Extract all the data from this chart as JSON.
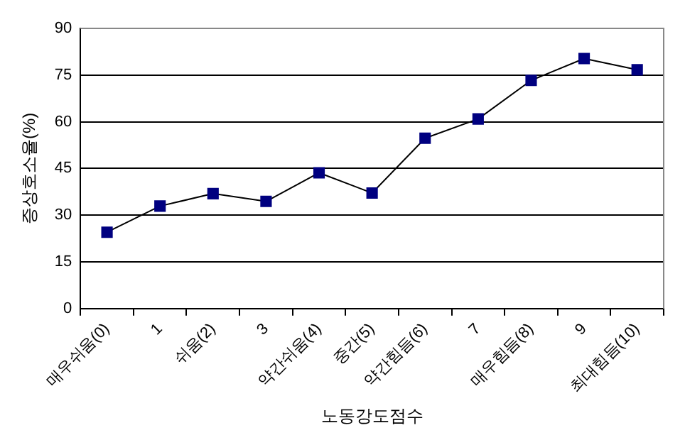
{
  "chart_data": {
    "type": "line",
    "xlabel": "노동강도점수",
    "ylabel": "증상호소율(%)",
    "categories": [
      "매우쉬움(0)",
      "1",
      "쉬움(2)",
      "3",
      "약간쉬움(4)",
      "중간(5)",
      "약간힘듬(6)",
      "7",
      "매우힘듬(8)",
      "9",
      "최대힘듬(10)"
    ],
    "series": [
      {
        "color": "#000080",
        "values": [
          24.5,
          32.9,
          36.9,
          34.4,
          43.6,
          37.1,
          54.7,
          60.9,
          73.3,
          80.3,
          76.7
        ]
      }
    ],
    "ylim": [
      0,
      90
    ],
    "yticks": [
      0,
      15,
      30,
      45,
      60,
      75,
      90
    ],
    "grid": "y",
    "legend": false,
    "marker": "square",
    "line_style": "solid"
  }
}
